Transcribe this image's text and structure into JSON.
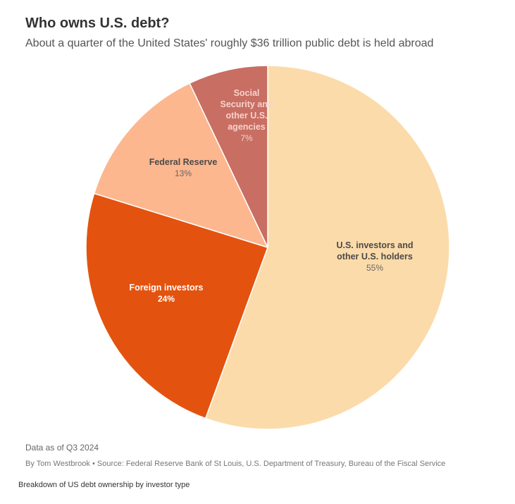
{
  "header": {
    "title": "Who owns U.S. debt?",
    "subtitle": "About a quarter of the United States' roughly $36 trillion public debt is held abroad"
  },
  "footer": {
    "data_note": "Data as of Q3 2024",
    "credit": "By Tom Westbrook • Source: Federal Reserve Bank of St Louis, U.S. Department of Treasury, Bureau of the Fiscal Service",
    "caption": "Breakdown of US debt ownership by investor type"
  },
  "chart_data": {
    "type": "pie",
    "title": "Who owns U.S. debt?",
    "subtitle": "About a quarter of the United States' roughly $36 trillion public debt is held abroad",
    "start": "12 o'clock",
    "direction": "clockwise",
    "slices": [
      {
        "name_lines": [
          "U.S. investors and",
          "other U.S. holders"
        ],
        "value": 55,
        "pct_label": "55%",
        "color": "#FCDBAA",
        "text_color": "#4a4a4a",
        "pct_color": "#666666",
        "pct_bold": false
      },
      {
        "name_lines": [
          "Foreign investors"
        ],
        "value": 24,
        "pct_label": "24%",
        "color": "#E3530F",
        "text_color": "#ffffff",
        "pct_color": "#ffffff",
        "pct_bold": true
      },
      {
        "name_lines": [
          "Federal Reserve"
        ],
        "value": 13,
        "pct_label": "13%",
        "color": "#FCB78F",
        "text_color": "#4a4a4a",
        "pct_color": "#666666",
        "pct_bold": false
      },
      {
        "name_lines": [
          "Social",
          "Security and",
          "other U.S.",
          "agencies"
        ],
        "value": 7,
        "pct_label": "7%",
        "color": "#C96E63",
        "text_color": "#F6D3CB",
        "pct_color": "#F6D3CB",
        "pct_bold": false
      }
    ]
  }
}
